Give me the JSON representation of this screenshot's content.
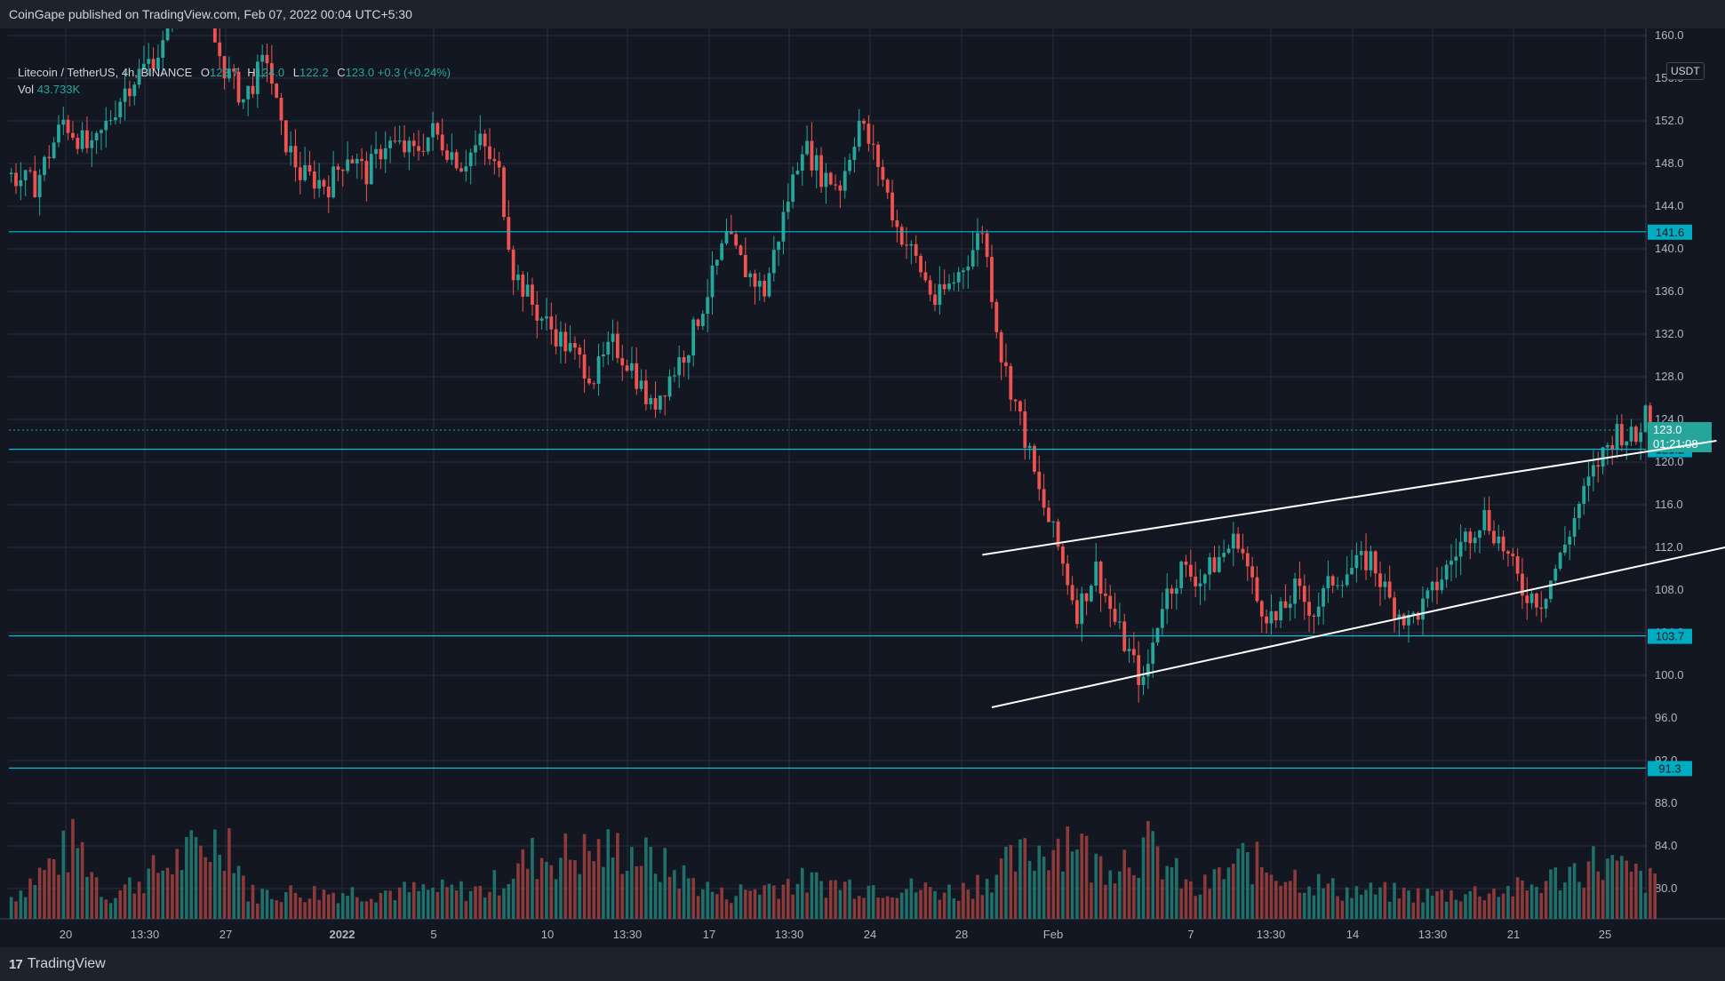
{
  "header": {
    "publisher_line": "CoinGape published on TradingView.com, Feb 07, 2022 00:04 UTC+5:30"
  },
  "legend": {
    "symbol": "Litecoin / TetherUS, 4h, BINANCE",
    "open_label": "O",
    "open": "122.7",
    "high_label": "H",
    "high": "124.0",
    "low_label": "L",
    "low": "122.2",
    "close_label": "C",
    "close": "123.0",
    "change": "+0.3 (+0.24%)",
    "volume_label": "Vol",
    "volume": "43.733K"
  },
  "price_axis": {
    "unit": "USDT",
    "countdown": "01:21:08"
  },
  "footer": {
    "brand": "TradingView",
    "brand_mark": "17"
  },
  "colors": {
    "up": "#26a69a",
    "down": "#ef5350",
    "level": "#00bcd4",
    "channel": "#ffffff",
    "background": "#131722"
  },
  "chart_data": {
    "type": "candlestick",
    "interval": "4h",
    "ylim": [
      79,
      162
    ],
    "yticks": [
      80.0,
      84.0,
      88.0,
      92.0,
      96.0,
      100.0,
      104.0,
      108.0,
      112.0,
      116.0,
      120.0,
      124.0,
      128.0,
      132.0,
      136.0,
      140.0,
      144.0,
      148.0,
      152.0,
      156.0,
      160.0
    ],
    "xtick_labels": [
      "20",
      "13:30",
      "27",
      "2022",
      "5",
      "10",
      "13:30",
      "17",
      "13:30",
      "24",
      "28",
      "Feb",
      "7",
      "13:30",
      "14",
      "13:30",
      "21",
      "25"
    ],
    "last_price": 123.0,
    "horizontal_levels": [
      141.6,
      121.2,
      103.7,
      91.3
    ],
    "price_path": [
      [
        0,
        147
      ],
      [
        6,
        146
      ],
      [
        12,
        152
      ],
      [
        18,
        149
      ],
      [
        25,
        155
      ],
      [
        33,
        159
      ],
      [
        36,
        165
      ],
      [
        40,
        164
      ],
      [
        46,
        157
      ],
      [
        50,
        154
      ],
      [
        55,
        158
      ],
      [
        58,
        151
      ],
      [
        62,
        147
      ],
      [
        68,
        146
      ],
      [
        72,
        149
      ],
      [
        76,
        147
      ],
      [
        80,
        150
      ],
      [
        86,
        149
      ],
      [
        90,
        151
      ],
      [
        96,
        148
      ],
      [
        100,
        150
      ],
      [
        104,
        147
      ],
      [
        107,
        138
      ],
      [
        112,
        134
      ],
      [
        118,
        131
      ],
      [
        124,
        128
      ],
      [
        128,
        131
      ],
      [
        132,
        129
      ],
      [
        136,
        125
      ],
      [
        140,
        128
      ],
      [
        144,
        131
      ],
      [
        148,
        136
      ],
      [
        152,
        141
      ],
      [
        156,
        138
      ],
      [
        160,
        136
      ],
      [
        164,
        143
      ],
      [
        168,
        150
      ],
      [
        172,
        147
      ],
      [
        176,
        146
      ],
      [
        180,
        152
      ],
      [
        184,
        148
      ],
      [
        188,
        142
      ],
      [
        192,
        139
      ],
      [
        196,
        135
      ],
      [
        200,
        137
      ],
      [
        204,
        140
      ],
      [
        206,
        142
      ],
      [
        210,
        130
      ],
      [
        214,
        124
      ],
      [
        218,
        117
      ],
      [
        222,
        112
      ],
      [
        226,
        106
      ],
      [
        230,
        110
      ],
      [
        234,
        105
      ],
      [
        238,
        101
      ],
      [
        240,
        99
      ],
      [
        244,
        107
      ],
      [
        248,
        110
      ],
      [
        252,
        109
      ],
      [
        256,
        111
      ],
      [
        260,
        113
      ],
      [
        264,
        107
      ],
      [
        268,
        105
      ],
      [
        272,
        108
      ],
      [
        276,
        106
      ],
      [
        280,
        109
      ],
      [
        284,
        110
      ],
      [
        288,
        111
      ],
      [
        292,
        107
      ],
      [
        296,
        105
      ],
      [
        300,
        107
      ],
      [
        304,
        110
      ],
      [
        308,
        113
      ],
      [
        312,
        115
      ],
      [
        316,
        112
      ],
      [
        320,
        108
      ],
      [
        324,
        107
      ],
      [
        328,
        111
      ],
      [
        332,
        116
      ],
      [
        336,
        120
      ],
      [
        340,
        123
      ],
      [
        344,
        122
      ],
      [
        346,
        125
      ],
      [
        348,
        123
      ]
    ],
    "volume_path": [
      [
        0,
        26
      ],
      [
        14,
        90
      ],
      [
        20,
        26
      ],
      [
        46,
        100
      ],
      [
        50,
        30
      ],
      [
        100,
        34
      ],
      [
        110,
        72
      ],
      [
        130,
        82
      ],
      [
        150,
        28
      ],
      [
        165,
        44
      ],
      [
        185,
        38
      ],
      [
        200,
        32
      ],
      [
        215,
        76
      ],
      [
        225,
        105
      ],
      [
        228,
        62
      ],
      [
        240,
        84
      ],
      [
        250,
        30
      ],
      [
        260,
        70
      ],
      [
        280,
        34
      ],
      [
        300,
        28
      ],
      [
        320,
        36
      ],
      [
        335,
        68
      ],
      [
        348,
        40
      ]
    ],
    "channel_upper": {
      "from": [
        205,
        111.3
      ],
      "to": [
        360,
        122.0
      ]
    },
    "channel_lower": {
      "from": [
        207,
        97.0
      ],
      "to": [
        368,
        112.6
      ]
    }
  }
}
